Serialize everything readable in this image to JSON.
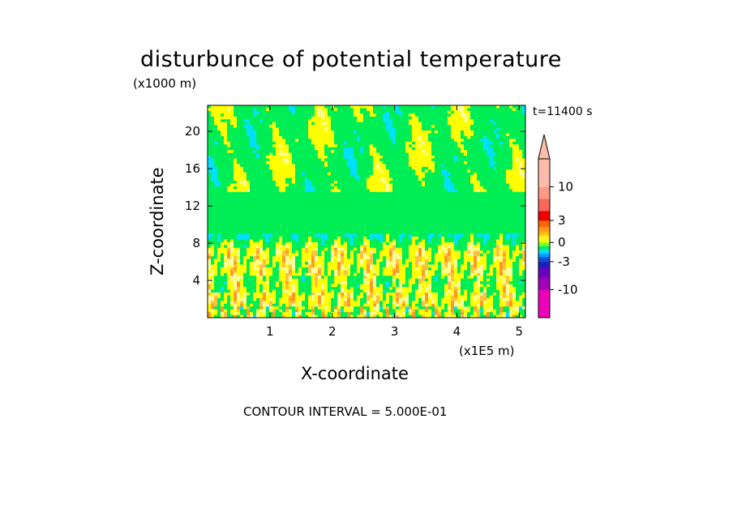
{
  "title": "disturbunce of potential temperature",
  "time_label": "t=11400 s",
  "contour_interval": "CONTOUR INTERVAL = 5.000E-01",
  "chart_data": {
    "type": "heatmap",
    "title": "disturbunce of potential temperature",
    "xlabel": "X-coordinate",
    "ylabel": "Z-coordinate",
    "x_unit": "(x1E5 m)",
    "z_unit": "(x1000 m)",
    "xlim": [
      0,
      5.1
    ],
    "ylim": [
      0,
      22.8
    ],
    "x_ticks": [
      1,
      2,
      3,
      4,
      5
    ],
    "y_ticks": [
      4,
      8,
      12,
      16,
      20
    ],
    "colorbar": {
      "tick_labels": [
        "10",
        "3",
        "0",
        "-3",
        "-10"
      ],
      "tick_values": [
        10,
        3,
        0,
        -3,
        -10
      ],
      "levels": [
        -20,
        -10,
        -7,
        -4,
        -3,
        -2,
        -1.5,
        -1,
        -0.5,
        0,
        0.5,
        1,
        1.5,
        2,
        3,
        4,
        7,
        10,
        20
      ],
      "colors": [
        "#ee00bb",
        "#a000bb",
        "#6a00c0",
        "#2020b8",
        "#0a50e0",
        "#00a0ff",
        "#00e0ff",
        "#00ee55",
        "#66ff33",
        "#eeff00",
        "#ffee22",
        "#ffc000",
        "#ff9922",
        "#ff6600",
        "#ee0000",
        "#ff6655",
        "#ff9988",
        "#ffbbaa"
      ],
      "extend": "max"
    },
    "field_colors": {
      "near_zero": "#00ee55",
      "small_positive": "#ffff00",
      "light_positive": "#ffff99",
      "moderate_positive": "#ffc040",
      "strong_positive": "#ff9922",
      "negative": "#00e0ff"
    }
  }
}
